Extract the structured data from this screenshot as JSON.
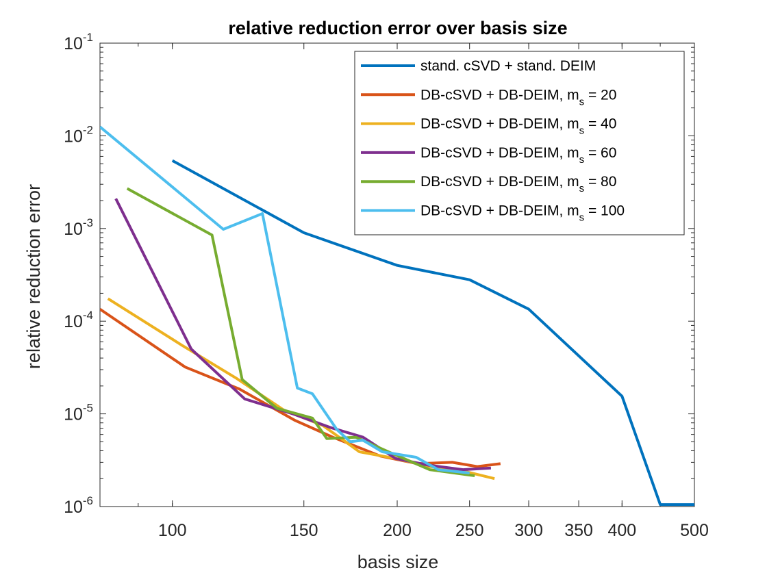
{
  "chart_data": {
    "type": "line",
    "title": "relative reduction error over basis size",
    "xlabel": "basis size",
    "ylabel": "relative reduction error",
    "xscale": "log",
    "yscale": "log",
    "xlim": [
      80,
      500
    ],
    "ylim": [
      1e-06,
      0.1
    ],
    "x_ticks": [
      {
        "value": 100,
        "label": "100"
      },
      {
        "value": 150,
        "label": "150"
      },
      {
        "value": 200,
        "label": "200"
      },
      {
        "value": 250,
        "label": "250"
      },
      {
        "value": 300,
        "label": "300"
      },
      {
        "value": 350,
        "label": "350"
      },
      {
        "value": 400,
        "label": "400"
      },
      {
        "value": 500,
        "label": "500"
      }
    ],
    "y_ticks": [
      {
        "value": 1e-06,
        "base": "10",
        "exp": "-6"
      },
      {
        "value": 1e-05,
        "base": "10",
        "exp": "-5"
      },
      {
        "value": 0.0001,
        "base": "10",
        "exp": "-4"
      },
      {
        "value": 0.001,
        "base": "10",
        "exp": "-3"
      },
      {
        "value": 0.01,
        "base": "10",
        "exp": "-2"
      },
      {
        "value": 0.1,
        "base": "10",
        "exp": "-1"
      }
    ],
    "legend_position": "top-right",
    "series": [
      {
        "name": "stand. cSVD + stand. DEIM",
        "legend_main": "stand. cSVD + stand. DEIM",
        "legend_sub": "",
        "legend_tail": "",
        "color": "#0072BD",
        "x": [
          100,
          150,
          200,
          250,
          300,
          400,
          450,
          500
        ],
        "y": [
          0.0054,
          0.0009,
          0.0004,
          0.00028,
          0.000135,
          1.55e-05,
          1.05e-06,
          1.05e-06
        ]
      },
      {
        "name": "DB-cSVD + DB-DEIM, ms = 20",
        "legend_main": "DB-cSVD + DB-DEIM, m",
        "legend_sub": "s",
        "legend_tail": " =  20",
        "color": "#D95319",
        "x": [
          80,
          104,
          123,
          146,
          164,
          190,
          213,
          237,
          256,
          275
        ],
        "y": [
          0.000135,
          3.2e-05,
          1.85e-05,
          8.5e-06,
          5.6e-06,
          3.5e-06,
          2.9e-06,
          3e-06,
          2.7e-06,
          2.9e-06
        ]
      },
      {
        "name": "DB-cSVD + DB-DEIM, ms = 40",
        "legend_main": "DB-cSVD + DB-DEIM, m",
        "legend_sub": "s",
        "legend_tail": " =  40",
        "color": "#EDB120",
        "x": [
          82,
          103,
          122,
          141,
          159,
          178,
          199,
          221,
          246,
          270
        ],
        "y": [
          0.000175,
          5.5e-05,
          2.4e-05,
          1.1e-05,
          7.5e-06,
          3.9e-06,
          3.3e-06,
          2.7e-06,
          2.4e-06,
          2e-06
        ]
      },
      {
        "name": "DB-cSVD + DB-DEIM, ms = 60",
        "legend_main": "DB-cSVD + DB-DEIM, m",
        "legend_sub": "s",
        "legend_tail": " =  60",
        "color": "#7E2F8E",
        "x": [
          84,
          106,
          125,
          145,
          163,
          180,
          199,
          220,
          245,
          267
        ],
        "y": [
          0.0021,
          5e-05,
          1.45e-05,
          1e-05,
          7.1e-06,
          5.6e-06,
          3.3e-06,
          2.8e-06,
          2.5e-06,
          2.6e-06
        ]
      },
      {
        "name": "DB-cSVD + DB-DEIM, ms = 80",
        "legend_main": "DB-cSVD + DB-DEIM, m",
        "legend_sub": "s",
        "legend_tail": " =  80",
        "color": "#77AC30",
        "x": [
          87,
          113,
          124,
          138,
          154,
          161,
          176,
          196,
          221,
          254
        ],
        "y": [
          0.0027,
          0.00085,
          2.35e-05,
          1.15e-05,
          9e-06,
          5.4e-06,
          5.6e-06,
          3.8e-06,
          2.5e-06,
          2.15e-06
        ]
      },
      {
        "name": "DB-cSVD + DB-DEIM, ms = 100",
        "legend_main": "DB-cSVD + DB-DEIM, m",
        "legend_sub": "s",
        "legend_tail": " =  100",
        "color": "#4DBEEE",
        "x": [
          80,
          117,
          132,
          147,
          154,
          166,
          173,
          180,
          191,
          212,
          227,
          250
        ],
        "y": [
          0.0125,
          0.00098,
          0.00145,
          1.9e-05,
          1.65e-05,
          6.8e-06,
          5e-06,
          5.2e-06,
          3.9e-06,
          3.4e-06,
          2.5e-06,
          2.3e-06
        ]
      }
    ]
  }
}
